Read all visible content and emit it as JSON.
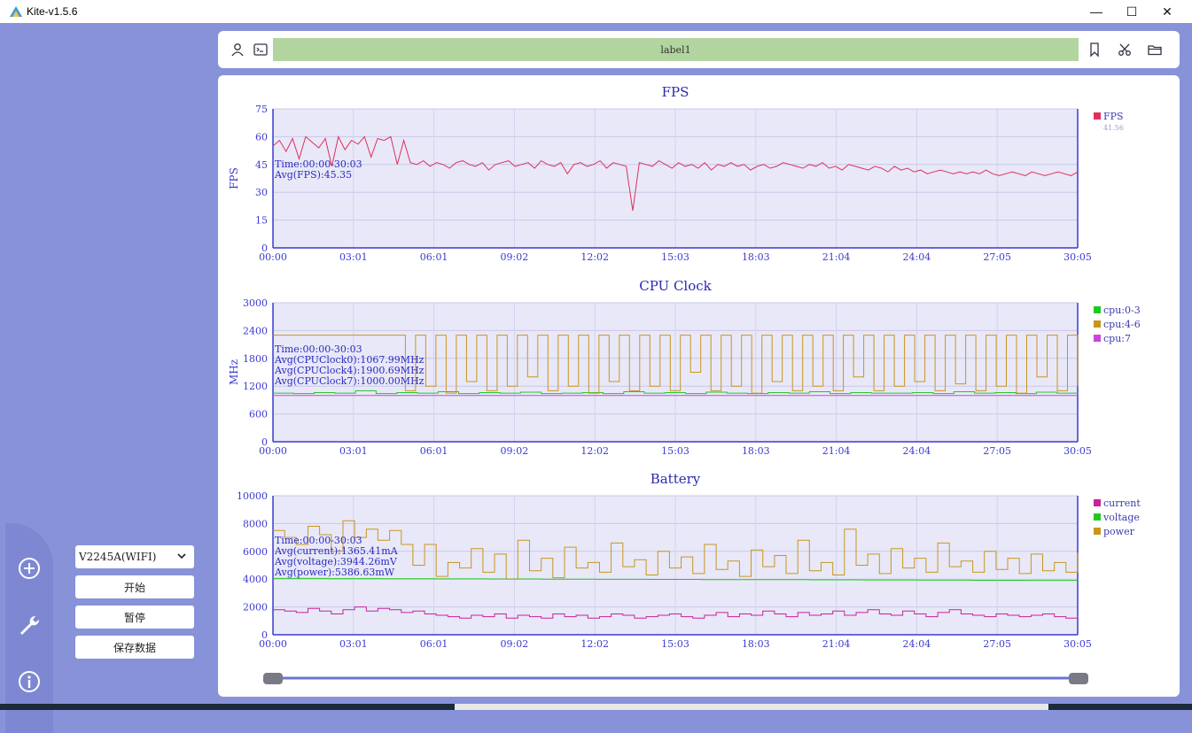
{
  "window": {
    "title": "Kite-v1.5.6",
    "minimize": "—",
    "maximize": "☐",
    "close": "✕"
  },
  "toolbar": {
    "label": "label1"
  },
  "sidebar": {
    "device_select": "V2245A(WIFI)",
    "start_label": "开始",
    "pause_label": "暂停",
    "save_label": "保存数据"
  },
  "colors": {
    "fps": "#e0305c",
    "cpu03": "#22c822",
    "cpu46": "#c8961e",
    "cpu7": "#cc44dd",
    "current": "#c8229c",
    "voltage": "#22c822",
    "power": "#c8961e",
    "plot_bg": "#e8e8f8",
    "axis": "#3a3ad0"
  },
  "chart_data": [
    {
      "type": "line",
      "title": "FPS",
      "ylabel": "FPS",
      "ylim": [
        0,
        75
      ],
      "yticks": [
        "0",
        "15",
        "30",
        "45",
        "60",
        "75"
      ],
      "xticks": [
        "00:00",
        "03:01",
        "06:01",
        "09:02",
        "12:02",
        "15:03",
        "18:03",
        "21:04",
        "24:04",
        "27:05",
        "30:05"
      ],
      "annotations": [
        "Time:00:00-30:03",
        "Avg(FPS):45.35"
      ],
      "series": [
        {
          "name": "FPS",
          "legend_value": "41.56",
          "values": [
            55,
            58,
            52,
            59,
            48,
            60,
            57,
            54,
            59,
            44,
            60,
            53,
            58,
            56,
            60,
            49,
            59,
            58,
            60,
            45,
            58,
            46,
            45,
            47,
            44,
            46,
            45,
            43,
            46,
            47,
            45,
            44,
            46,
            42,
            45,
            46,
            47,
            44,
            45,
            46,
            43,
            47,
            45,
            44,
            46,
            40,
            45,
            46,
            44,
            45,
            47,
            43,
            46,
            45,
            44,
            20,
            46,
            45,
            44,
            47,
            45,
            43,
            46,
            44,
            45,
            43,
            46,
            42,
            45,
            44,
            46,
            44,
            45,
            42,
            44,
            45,
            43,
            44,
            46,
            45,
            44,
            43,
            45,
            44,
            46,
            43,
            44,
            42,
            45,
            44,
            43,
            42,
            44,
            43,
            41,
            44,
            42,
            43,
            41,
            42,
            40,
            41,
            42,
            41,
            40,
            41,
            40,
            41,
            40,
            42,
            40,
            39,
            40,
            41,
            40,
            39,
            41,
            40,
            39,
            40,
            41,
            40,
            39,
            41
          ]
        }
      ]
    },
    {
      "type": "line",
      "title": "CPU Clock",
      "ylabel": "MHz",
      "ylim": [
        0,
        3000
      ],
      "yticks": [
        "0",
        "600",
        "1200",
        "1800",
        "2400",
        "3000"
      ],
      "xticks": [
        "00:00",
        "03:01",
        "06:01",
        "09:02",
        "12:02",
        "15:03",
        "18:03",
        "21:04",
        "24:04",
        "27:05",
        "30:05"
      ],
      "annotations": [
        "Time:00:00-30:03",
        "Avg(CPUClock0):1067.99MHz",
        "Avg(CPUClock4):1900.69MHz",
        "Avg(CPUClock7):1000.00MHz"
      ],
      "series": [
        {
          "name": "cpu:0-3",
          "values": [
            1050,
            1040,
            1060,
            1050,
            1100,
            1040,
            1060,
            1050,
            1080,
            1040,
            1060,
            1050,
            1070,
            1040,
            1050,
            1060,
            1040,
            1080,
            1050,
            1060,
            1040,
            1070,
            1050,
            1040,
            1060,
            1050,
            1080,
            1040,
            1060,
            1050,
            1050,
            1060,
            1040,
            1080,
            1050,
            1060,
            1040,
            1070,
            1050,
            1040
          ]
        },
        {
          "name": "cpu:4-6",
          "values": [
            2300,
            2300,
            2300,
            2300,
            2300,
            2300,
            2300,
            2300,
            2300,
            2300,
            2300,
            2300,
            2300,
            1100,
            2300,
            1200,
            2300,
            1050,
            2300,
            1300,
            2300,
            1100,
            2300,
            1200,
            2300,
            1400,
            2300,
            1100,
            2300,
            1200,
            2300,
            1050,
            2300,
            1300,
            2300,
            1100,
            2300,
            1200,
            2300,
            1100,
            2300,
            1500,
            2300,
            1100,
            2300,
            1200,
            2300,
            1050,
            2300,
            1300,
            2300,
            1100,
            2300,
            1200,
            2300,
            1100,
            2300,
            1400,
            2300,
            1100,
            2300,
            1200,
            2300,
            1300,
            2300,
            1100,
            2300,
            1250,
            2300,
            1100,
            2300,
            1200,
            2300,
            1050,
            2300,
            1400,
            2300,
            1100,
            2300,
            1200
          ]
        },
        {
          "name": "cpu:7",
          "values": [
            1000,
            1000,
            1000,
            1000,
            1000,
            1000,
            1000,
            1000,
            1000,
            1000
          ]
        }
      ]
    },
    {
      "type": "line",
      "title": "Battery",
      "ylim": [
        0,
        10000
      ],
      "yticks": [
        "0",
        "2000",
        "4000",
        "6000",
        "8000",
        "10000"
      ],
      "xticks": [
        "00:00",
        "03:01",
        "06:01",
        "09:02",
        "12:02",
        "15:03",
        "18:03",
        "21:04",
        "24:04",
        "27:05",
        "30:05"
      ],
      "annotations": [
        "Time:00:00-30:03",
        "Avg(current):1365.41mA",
        "Avg(voltage):3944.26mV",
        "Avg(power):5386.63mW"
      ],
      "series": [
        {
          "name": "current",
          "values": [
            1800,
            1700,
            1600,
            1900,
            1700,
            1500,
            1800,
            2000,
            1700,
            1900,
            1800,
            1600,
            1700,
            1500,
            1400,
            1300,
            1200,
            1400,
            1300,
            1500,
            1200,
            1400,
            1300,
            1200,
            1500,
            1300,
            1400,
            1200,
            1300,
            1500,
            1400,
            1200,
            1300,
            1400,
            1500,
            1300,
            1200,
            1400,
            1600,
            1300,
            1500,
            1400,
            1700,
            1500,
            1300,
            1600,
            1400,
            1500,
            1700,
            1400,
            1600,
            1800,
            1500,
            1400,
            1700,
            1500,
            1300,
            1600,
            1800,
            1500,
            1400,
            1300,
            1500,
            1400,
            1300,
            1400,
            1500,
            1300,
            1200,
            1400
          ]
        },
        {
          "name": "voltage",
          "values": [
            4050,
            4040,
            4030,
            4020,
            4010,
            4000,
            3990,
            3980,
            3970,
            3960,
            3950,
            3940,
            3930,
            3920,
            3910,
            3900
          ]
        },
        {
          "name": "power",
          "values": [
            7500,
            7000,
            6500,
            7800,
            7200,
            6000,
            8200,
            7000,
            7600,
            6800,
            7500,
            6500,
            5000,
            6500,
            4200,
            5200,
            4800,
            6200,
            4500,
            5800,
            4000,
            6800,
            4600,
            5500,
            4100,
            6300,
            4800,
            5200,
            4500,
            6600,
            4900,
            5400,
            4300,
            6000,
            4800,
            5600,
            4400,
            6500,
            4700,
            5300,
            4200,
            6100,
            4900,
            5700,
            4400,
            6800,
            4600,
            5200,
            4300,
            7600,
            5000,
            5800,
            4400,
            6200,
            4800,
            5500,
            4500,
            6600,
            4900,
            5300,
            4500,
            6000,
            4700,
            5500,
            4400,
            5800,
            4600,
            5200,
            4500,
            5900
          ]
        }
      ]
    }
  ]
}
